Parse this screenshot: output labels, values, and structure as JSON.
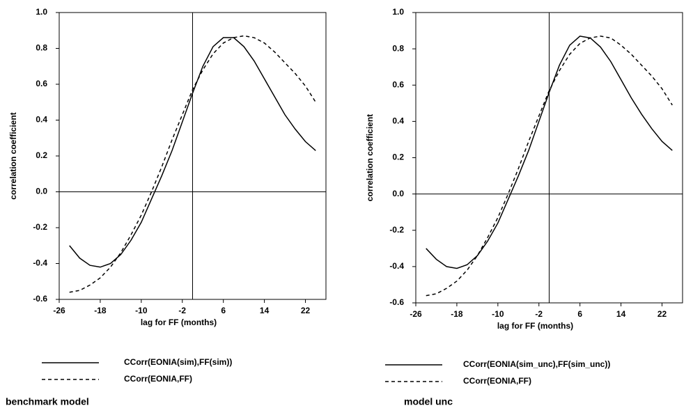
{
  "chart_data": [
    {
      "type": "line",
      "caption": "benchmark model",
      "xlabel": "lag for FF (months)",
      "ylabel": "correlation coefficient",
      "x": [
        -24,
        -22,
        -20,
        -18,
        -16,
        -14,
        -12,
        -10,
        -8,
        -6,
        -4,
        -2,
        0,
        2,
        4,
        6,
        8,
        10,
        12,
        14,
        16,
        18,
        20,
        22,
        24
      ],
      "series": [
        {
          "name": "CCorr(EONIA(sim),FF(sim))",
          "color": "#000000",
          "style": "solid",
          "values": [
            -0.3,
            -0.37,
            -0.41,
            -0.42,
            -0.4,
            -0.35,
            -0.27,
            -0.17,
            -0.04,
            0.09,
            0.23,
            0.39,
            0.55,
            0.7,
            0.81,
            0.86,
            0.86,
            0.81,
            0.73,
            0.63,
            0.53,
            0.43,
            0.35,
            0.28,
            0.23
          ]
        },
        {
          "name": "CCorr(EONIA,FF)",
          "color": "#000000",
          "style": "dashed",
          "values": [
            -0.56,
            -0.55,
            -0.52,
            -0.48,
            -0.42,
            -0.34,
            -0.24,
            -0.13,
            0.0,
            0.14,
            0.29,
            0.43,
            0.57,
            0.68,
            0.77,
            0.83,
            0.86,
            0.87,
            0.86,
            0.83,
            0.78,
            0.72,
            0.66,
            0.59,
            0.5
          ]
        }
      ],
      "xlim": [
        -26,
        26
      ],
      "xticks": [
        -26,
        -18,
        -10,
        -2,
        6,
        14,
        22
      ],
      "ylim": [
        -0.6,
        1.0
      ],
      "yticks": [
        -0.6,
        -0.4,
        -0.2,
        {
          "value": 0,
          "label": "0.0"
        },
        0.2,
        0.4,
        0.6,
        0.8,
        {
          "value": 1,
          "label": "1.0"
        }
      ],
      "vline": 0,
      "hline": 0
    },
    {
      "type": "line",
      "caption": "model unc",
      "xlabel": "lag for FF (months)",
      "ylabel": "correlation coefficient",
      "x": [
        -24,
        -22,
        -20,
        -18,
        -16,
        -14,
        -12,
        -10,
        -8,
        -6,
        -4,
        -2,
        0,
        2,
        4,
        6,
        8,
        10,
        12,
        14,
        16,
        18,
        20,
        22,
        24
      ],
      "series": [
        {
          "name": "CCorr(EONIA(sim_unc),FF(sim_unc))",
          "color": "#000000",
          "style": "solid",
          "values": [
            -0.3,
            -0.36,
            -0.4,
            -0.41,
            -0.39,
            -0.34,
            -0.26,
            -0.16,
            -0.03,
            0.1,
            0.24,
            0.4,
            0.56,
            0.71,
            0.82,
            0.87,
            0.86,
            0.81,
            0.73,
            0.63,
            0.53,
            0.44,
            0.36,
            0.29,
            0.24
          ]
        },
        {
          "name": "CCorr(EONIA,FF)",
          "color": "#000000",
          "style": "dashed",
          "values": [
            -0.56,
            -0.55,
            -0.52,
            -0.48,
            -0.42,
            -0.34,
            -0.24,
            -0.13,
            0.0,
            0.14,
            0.29,
            0.43,
            0.57,
            0.68,
            0.77,
            0.83,
            0.86,
            0.87,
            0.86,
            0.82,
            0.77,
            0.71,
            0.65,
            0.58,
            0.49
          ]
        }
      ],
      "xlim": [
        -26,
        26
      ],
      "xticks": [
        -26,
        -18,
        -10,
        -2,
        6,
        14,
        22
      ],
      "ylim": [
        -0.6,
        1.0
      ],
      "yticks": [
        -0.6,
        -0.4,
        -0.2,
        {
          "value": 0,
          "label": "0.0"
        },
        0.2,
        0.4,
        0.6,
        0.8,
        {
          "value": 1,
          "label": "1.0"
        }
      ],
      "vline": 0,
      "hline": 0
    }
  ]
}
